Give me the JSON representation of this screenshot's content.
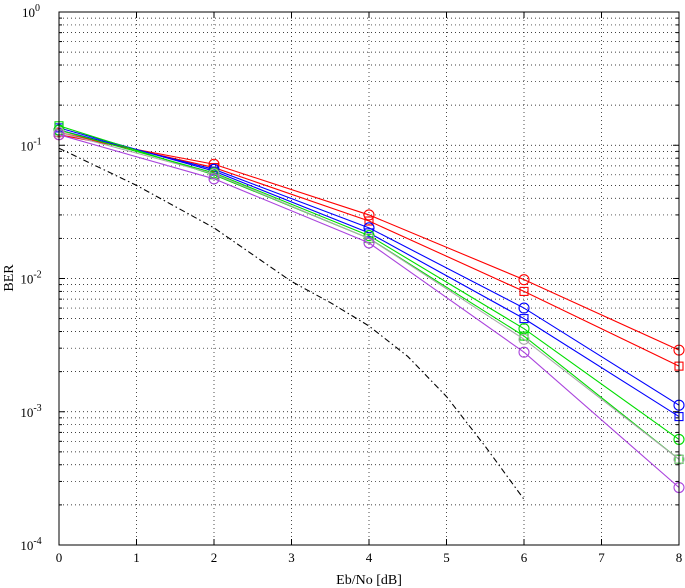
{
  "chart_data": {
    "type": "line",
    "xlabel": "Eb/No [dB]",
    "ylabel": "BER",
    "xlim": [
      0,
      8
    ],
    "ylim": [
      0.0001,
      1
    ],
    "yscale": "log",
    "grid": true,
    "x_ticks": [
      "0",
      "1",
      "2",
      "3",
      "4",
      "5",
      "6",
      "7",
      "8"
    ],
    "y_ticks": [
      {
        "base": "10",
        "exp": "0"
      },
      {
        "base": "10",
        "exp": "-1"
      },
      {
        "base": "10",
        "exp": "-2"
      },
      {
        "base": "10",
        "exp": "-3"
      },
      {
        "base": "10",
        "exp": "-4"
      }
    ],
    "series": [
      {
        "color": "#ff0000",
        "marker": "circle",
        "dash": "solid",
        "x": [
          0,
          2,
          4,
          6,
          8
        ],
        "y": [
          0.12,
          0.072,
          0.03,
          0.0098,
          0.0029
        ]
      },
      {
        "color": "#ff0000",
        "marker": "square",
        "dash": "solid",
        "x": [
          0,
          2,
          4,
          6,
          8
        ],
        "y": [
          0.125,
          0.068,
          0.027,
          0.008,
          0.0022
        ]
      },
      {
        "color": "#0000ff",
        "marker": "circle",
        "dash": "solid",
        "x": [
          0,
          2,
          4,
          6,
          8
        ],
        "y": [
          0.13,
          0.066,
          0.024,
          0.006,
          0.00112
        ]
      },
      {
        "color": "#0000ff",
        "marker": "square",
        "dash": "solid",
        "x": [
          0,
          2,
          4,
          6,
          8
        ],
        "y": [
          0.135,
          0.064,
          0.022,
          0.005,
          0.00092
        ]
      },
      {
        "color": "#00dd00",
        "marker": "circle",
        "dash": "solid",
        "x": [
          0,
          2,
          4,
          6,
          8
        ],
        "y": [
          0.13,
          0.062,
          0.021,
          0.0042,
          0.00062
        ]
      },
      {
        "color": "#00dd00",
        "marker": "square",
        "dash": "solid",
        "x": [
          0,
          2,
          4,
          6,
          8
        ],
        "y": [
          0.14,
          0.06,
          0.02,
          0.0037,
          0.00044
        ]
      },
      {
        "color": "#aaaaaa",
        "marker": "circle",
        "dash": "solid",
        "x": [
          0,
          2,
          4,
          6,
          8
        ],
        "y": [
          0.125,
          0.061,
          0.02,
          0.0035,
          0.00044
        ]
      },
      {
        "color": "#aa44dd",
        "marker": "circle",
        "dash": "solid",
        "x": [
          0,
          2,
          4,
          6,
          8
        ],
        "y": [
          0.12,
          0.056,
          0.0185,
          0.0028,
          0.00027
        ]
      },
      {
        "color": "#000000",
        "marker": "none",
        "dash": "dashdot",
        "x": [
          0,
          1,
          2,
          3,
          3.5,
          4,
          4.5,
          5,
          5.5,
          6
        ],
        "y": [
          0.095,
          0.05,
          0.024,
          0.0095,
          0.0066,
          0.0044,
          0.0026,
          0.0013,
          0.00055,
          0.00022
        ]
      }
    ]
  }
}
